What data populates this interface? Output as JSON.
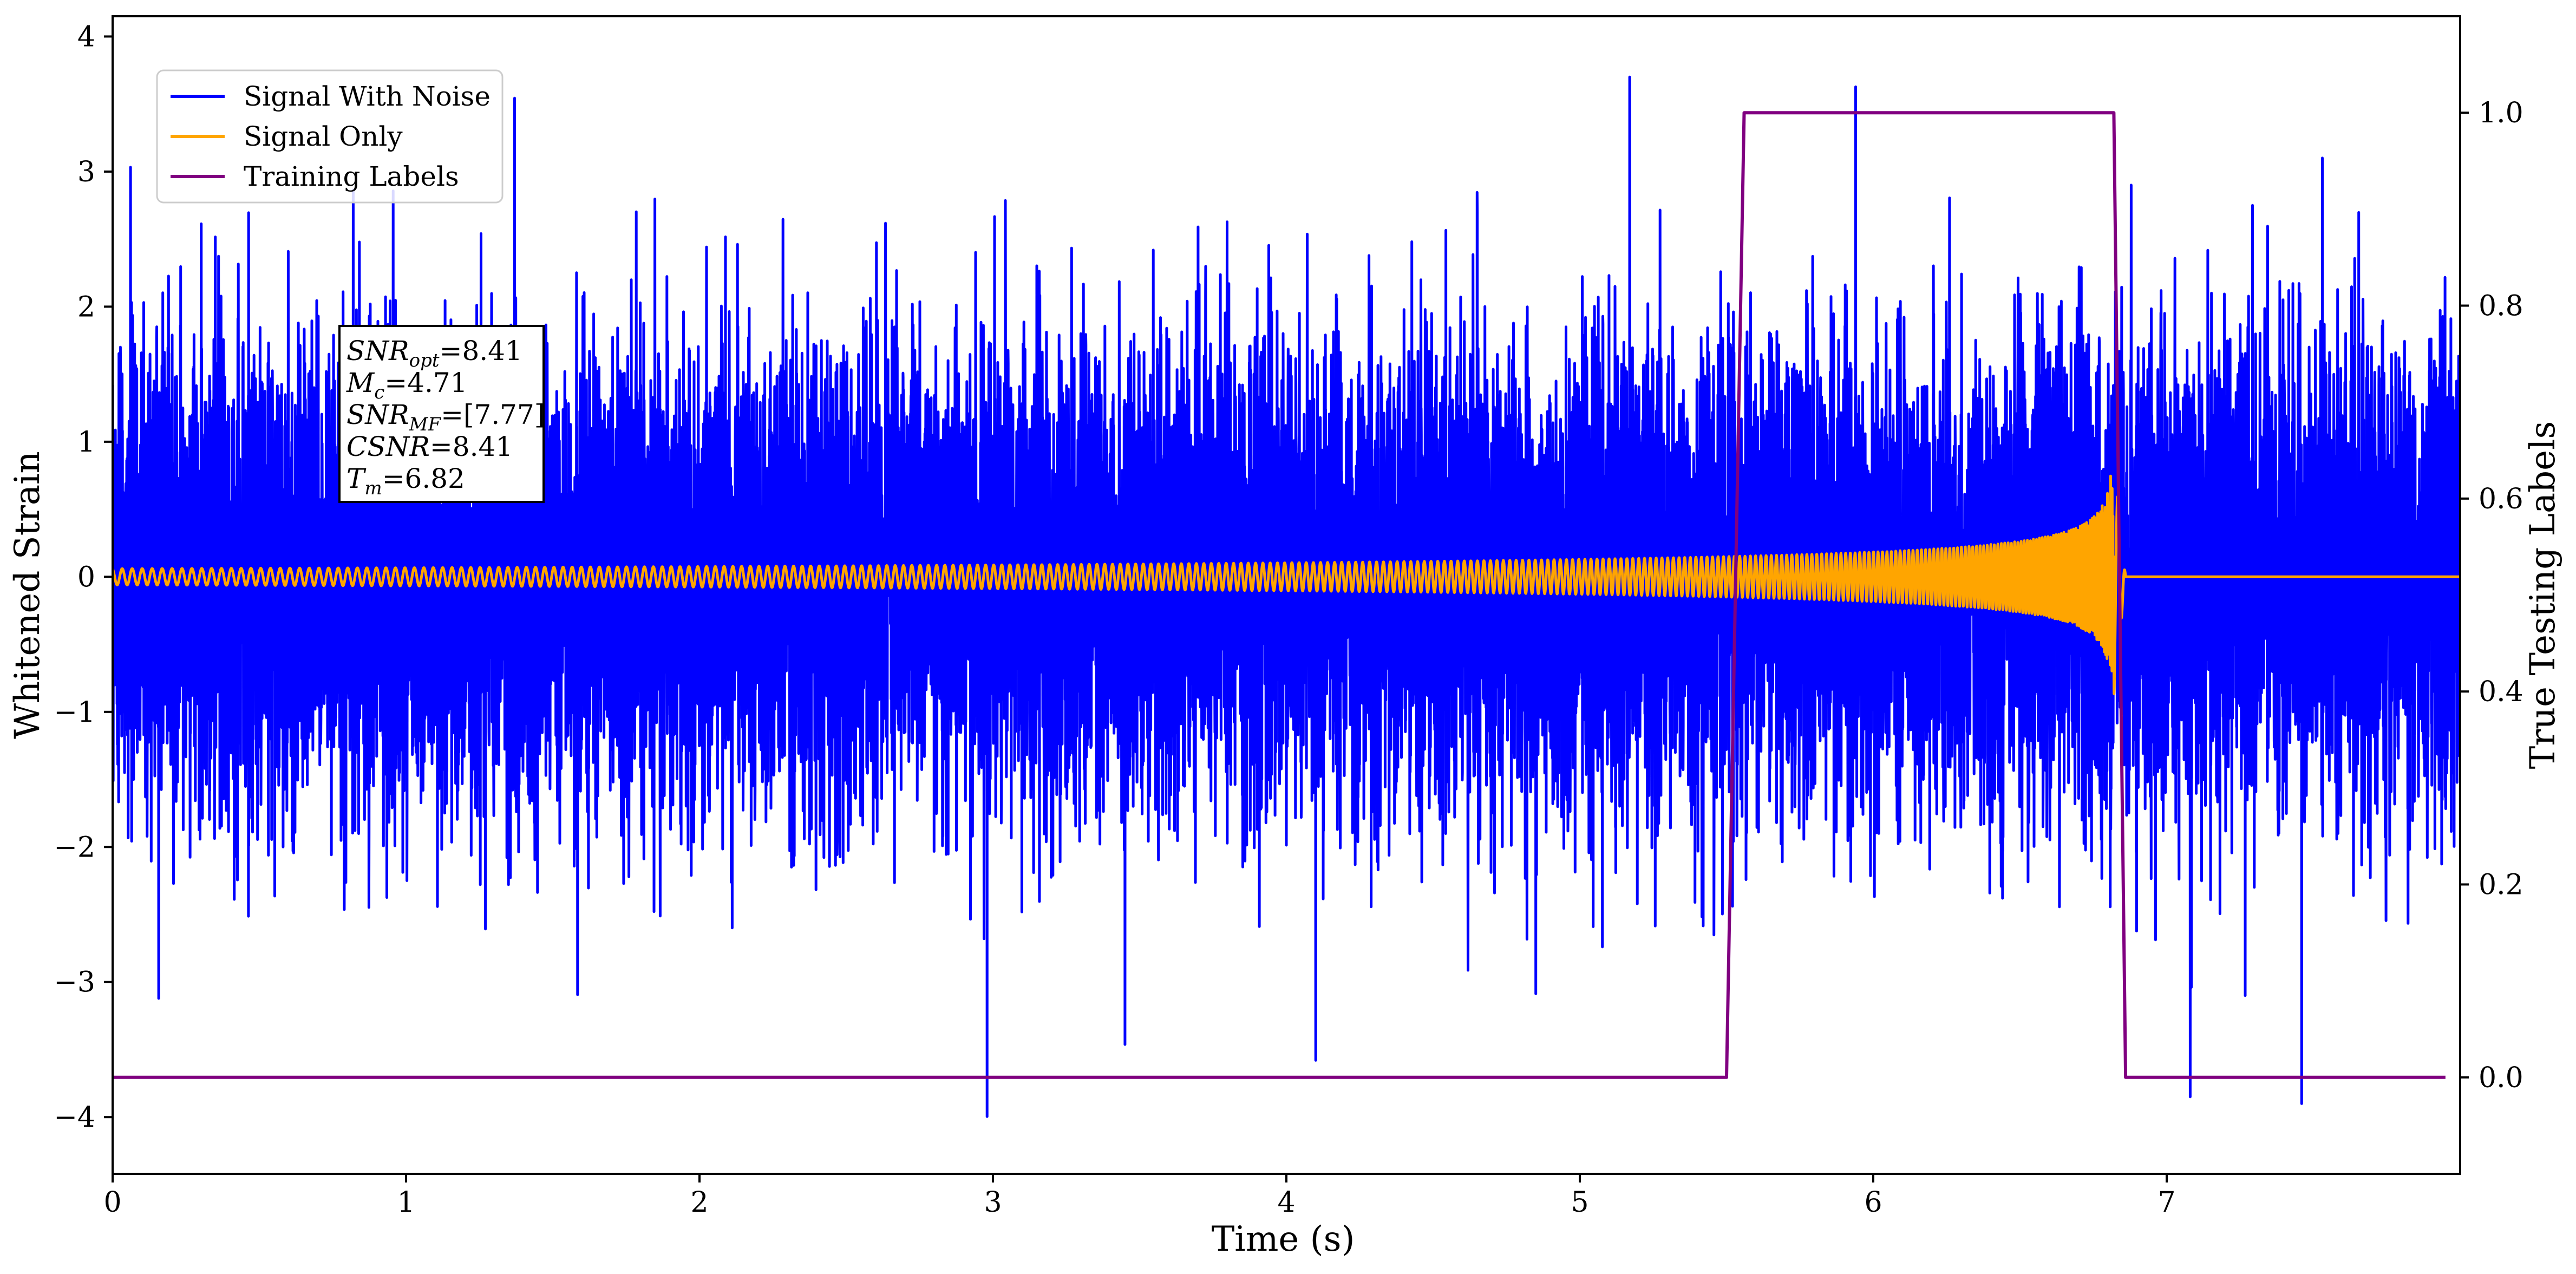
{
  "chart_data": {
    "type": "line",
    "xlabel": "Time (s)",
    "ylabel": "Whitened Strain",
    "y2label": "True Testing Labels",
    "xlim": [
      0,
      8.0
    ],
    "ylim": [
      -4.42,
      4.15
    ],
    "y2lim": [
      -0.1,
      1.1
    ],
    "xticks": [
      0,
      1,
      2,
      3,
      4,
      5,
      6,
      7
    ],
    "yticks": [
      -4,
      -3,
      -2,
      -1,
      0,
      1,
      2,
      3,
      4
    ],
    "y2ticks": [
      0.0,
      0.2,
      0.4,
      0.6,
      0.8,
      1.0
    ],
    "xtick_labels": [
      "0",
      "1",
      "2",
      "3",
      "4",
      "5",
      "6",
      "7"
    ],
    "ytick_labels": [
      "−4",
      "−3",
      "−2",
      "−1",
      "0",
      "1",
      "2",
      "3",
      "4"
    ],
    "y2tick_labels": [
      "0.0",
      "0.2",
      "0.4",
      "0.6",
      "0.8",
      "1.0"
    ],
    "grid": false,
    "legend_position": "top-left",
    "series": [
      {
        "name": "Signal With Noise",
        "axis": "left",
        "color": "#0000ff",
        "sampling": "noise of unit variance, about ±2.5 with peaks reaching 3.8 and -4.0",
        "x_range": [
          0,
          8.0
        ],
        "peaks": [
          {
            "x": 0.82,
            "y": 2.9
          },
          {
            "x": 1.37,
            "y": 3.55
          },
          {
            "x": 2.98,
            "y": -4.02
          },
          {
            "x": 3.45,
            "y": -3.42
          },
          {
            "x": 4.1,
            "y": -3.55
          },
          {
            "x": 4.85,
            "y": -3.15
          },
          {
            "x": 5.17,
            "y": 3.78
          },
          {
            "x": 5.94,
            "y": 3.55
          },
          {
            "x": 7.08,
            "y": -3.85
          },
          {
            "x": 7.46,
            "y": -3.9
          }
        ]
      },
      {
        "name": "Signal Only",
        "axis": "left",
        "color": "#ffa500",
        "kind": "chirp",
        "start_x": 0.0,
        "merger_x": 6.82,
        "end_x": 8.0,
        "amplitude_start": 0.06,
        "amplitude_peak": 0.75,
        "trough_peak": -0.88,
        "ringdown_end_x": 6.86
      },
      {
        "name": "Training Labels",
        "axis": "right",
        "color": "#800080",
        "x": [
          0.0,
          5.5,
          5.56,
          6.82,
          6.86,
          7.95
        ],
        "y": [
          0.0,
          0.0,
          1.0,
          1.0,
          0.0,
          0.0
        ]
      }
    ],
    "annotation": {
      "lines": [
        {
          "sym": "SNR",
          "sub": "opt",
          "val": "=8.41"
        },
        {
          "sym": "M",
          "sub": "c",
          "val": "=4.71"
        },
        {
          "sym": "SNR",
          "sub": "MF",
          "val": "=[7.77]"
        },
        {
          "sym": "CSNR",
          "sub": "",
          "val": "=8.41"
        },
        {
          "sym": "T",
          "sub": "m",
          "val": "=6.82"
        }
      ]
    }
  }
}
